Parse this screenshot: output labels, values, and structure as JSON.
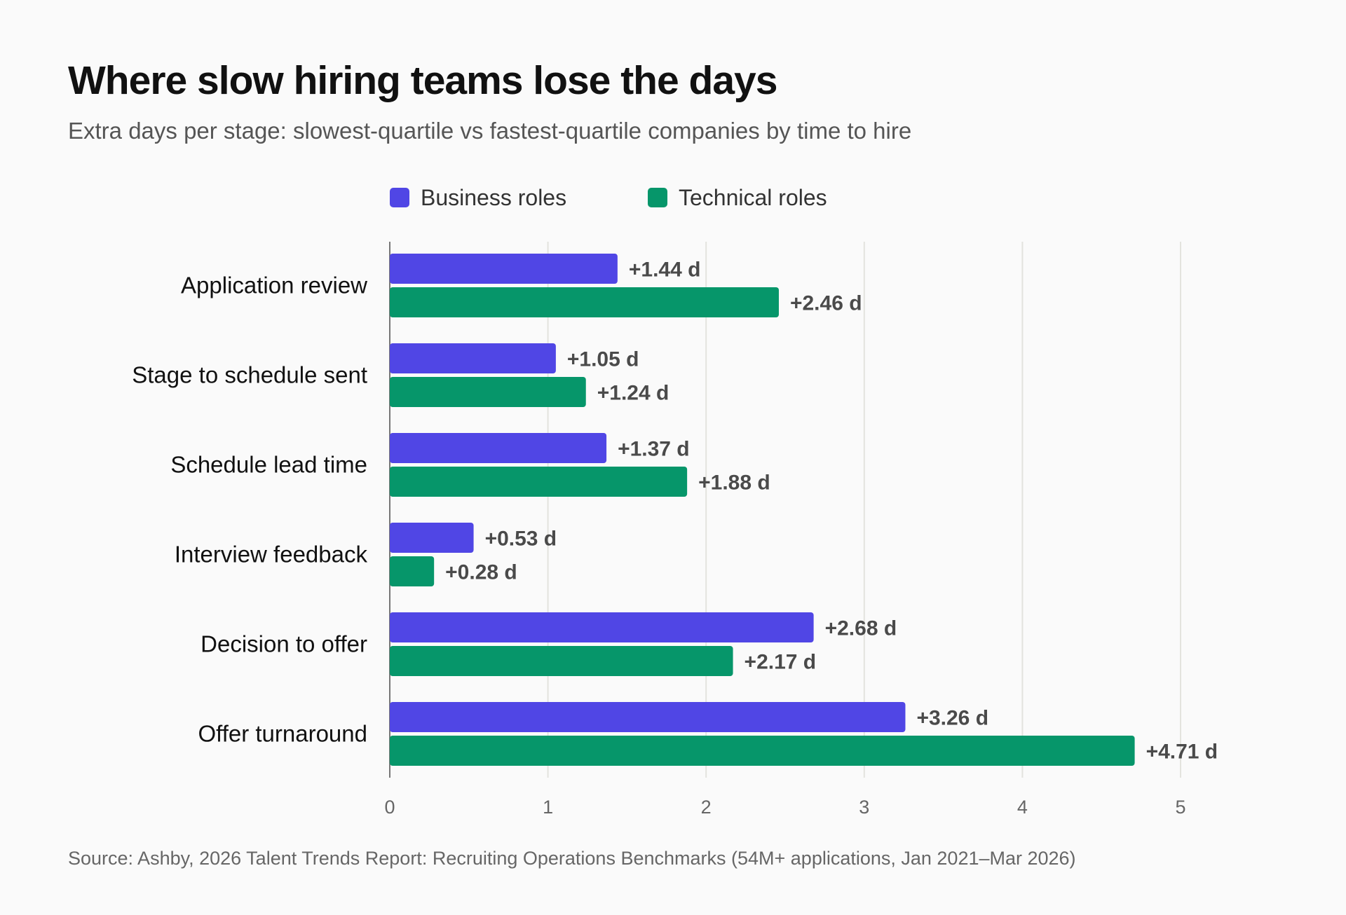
{
  "header": {
    "title": "Where slow hiring teams lose the days",
    "subtitle": "Extra days per stage: slowest-quartile vs fastest-quartile companies by time to hire"
  },
  "footer": {
    "source": "Source: Ashby, 2026 Talent Trends Report: Recruiting Operations Benchmarks (54M+ applications, Jan 2021–Mar 2026)"
  },
  "colors": {
    "business": "#5046e5",
    "technical": "#06966a",
    "grid": "#e3e3de",
    "axis": "#777777"
  },
  "legend": {
    "items": [
      {
        "label": "Business roles",
        "color": "#5046e5"
      },
      {
        "label": "Technical roles",
        "color": "#06966a"
      }
    ]
  },
  "chart_data": {
    "type": "bar",
    "orientation": "horizontal",
    "title": "Where slow hiring teams lose the days",
    "subtitle": "Extra days per stage: slowest-quartile vs fastest-quartile companies by time to hire",
    "categories": [
      "Application review",
      "Stage to schedule sent",
      "Schedule lead time",
      "Interview feedback",
      "Decision to offer",
      "Offer turnaround"
    ],
    "series": [
      {
        "name": "Business roles",
        "color": "#5046e5",
        "values": [
          1.44,
          1.05,
          1.37,
          0.53,
          2.68,
          3.26
        ],
        "labels": [
          "+1.44 d",
          "+1.05 d",
          "+1.37 d",
          "+0.53 d",
          "+2.68 d",
          "+3.26 d"
        ]
      },
      {
        "name": "Technical roles",
        "color": "#06966a",
        "values": [
          2.46,
          1.24,
          1.88,
          0.28,
          2.17,
          4.71
        ],
        "labels": [
          "+2.46 d",
          "+1.24 d",
          "+1.88 d",
          "+0.28 d",
          "+2.17 d",
          "+4.71 d"
        ]
      }
    ],
    "xlim": [
      0,
      5
    ],
    "xticks": [
      "0",
      "1",
      "2",
      "3",
      "4",
      "5"
    ],
    "xlabel": "",
    "ylabel": "",
    "grid": "vertical",
    "legend_position": "top-center"
  }
}
